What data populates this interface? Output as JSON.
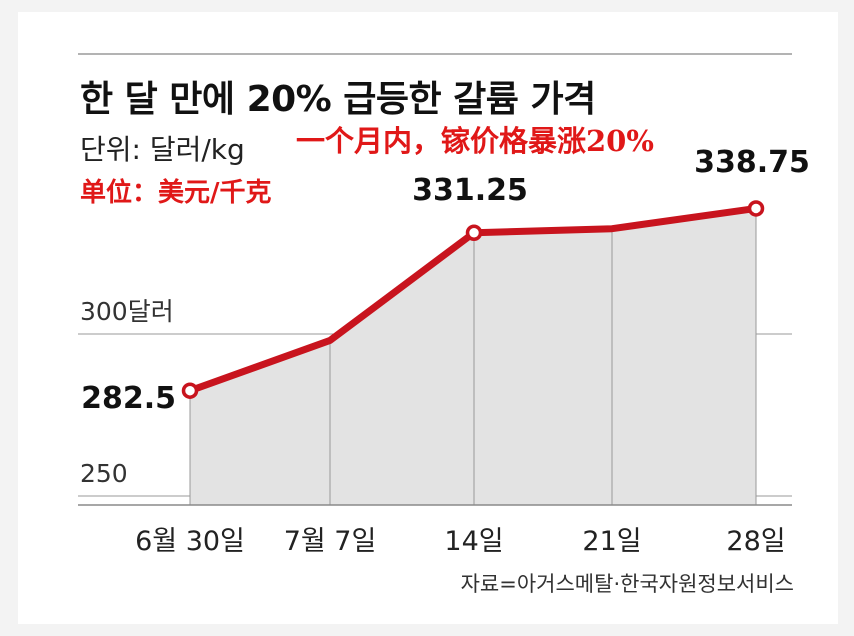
{
  "title": "한 달 만에 20% 급등한 갈륨 가격",
  "unit_label": "단위: 달러/kg",
  "unit_label_cn": "单位：美元/千克",
  "subtitle_cn": "一个月内，镓价格暴涨20%",
  "source": "자료=아거스메탈·한국자원정보서비스",
  "colors": {
    "line": "#c8141e",
    "area": "#e3e3e3",
    "annotation_red": "#e01818"
  },
  "chart_data": {
    "type": "area",
    "title": "한 달 만에 20% 급등한 갈륨 가격",
    "ylabel": "",
    "xlabel": "",
    "categories": [
      "6월 30일",
      "7월 7일",
      "14일",
      "21일",
      "28일"
    ],
    "values": [
      282.5,
      298,
      331.25,
      332.5,
      338.75
    ],
    "value_labels": [
      "282.5",
      "",
      "331.25",
      "",
      "338.75"
    ],
    "y_ticks": [
      {
        "value": 300,
        "label": "300달러"
      },
      {
        "value": 250,
        "label": "250"
      }
    ],
    "ylim": [
      245,
      354
    ],
    "grid": true
  }
}
